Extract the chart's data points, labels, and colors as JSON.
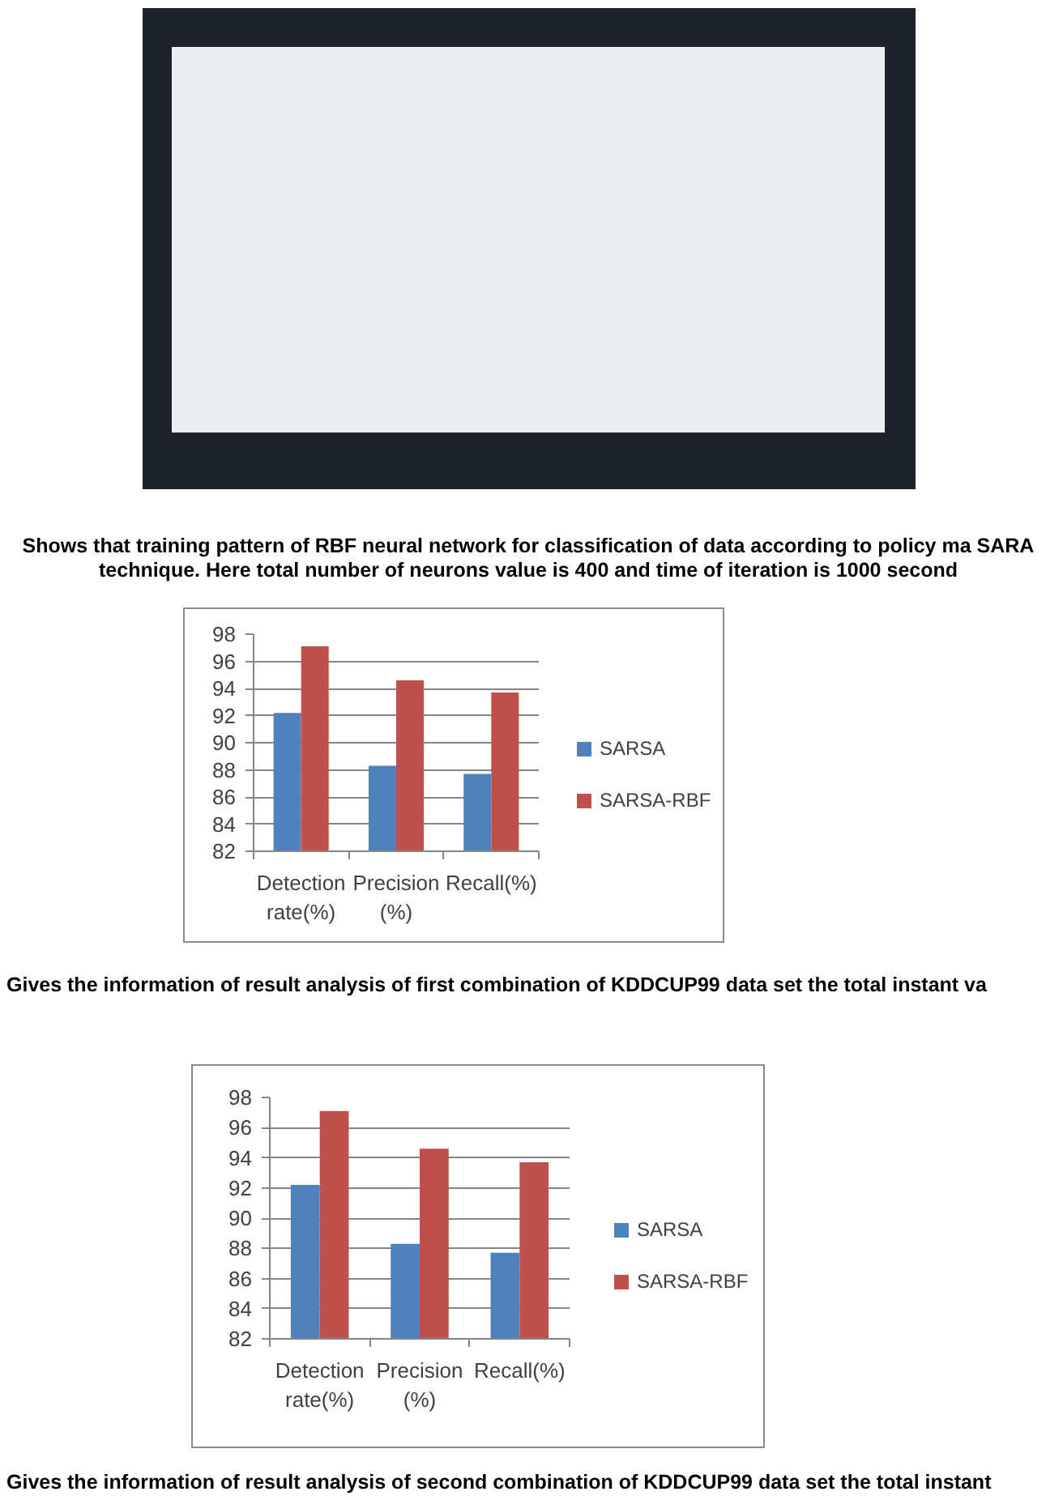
{
  "chart_data": [
    {
      "type": "other",
      "annotations": [
        "Shows that training pattern of RBF neural network for classification of data according to policy ma SARA technique. Here total number of neurons value is 400 and time of iteration is 1000 second"
      ]
    },
    {
      "type": "bar",
      "categories": [
        "Detection rate(%)",
        "Precision (%)",
        "Recall(%)"
      ],
      "series": [
        {
          "name": "SARSA",
          "color": "#4f81bd",
          "values": [
            92.2,
            88.3,
            87.7
          ]
        },
        {
          "name": "SARSA-RBF",
          "color": "#c0504d",
          "values": [
            97.1,
            94.6,
            93.7
          ]
        }
      ],
      "ylim": [
        82,
        98
      ],
      "yticks": [
        82,
        84,
        86,
        88,
        90,
        92,
        94,
        96,
        98
      ],
      "grid": "y",
      "legend": "right",
      "annotations": [
        "Gives the information of result analysis of first combination of KDDCUP99 data set the total instant va"
      ]
    },
    {
      "type": "bar",
      "categories": [
        "Detection rate(%)",
        "Precision (%)",
        "Recall(%)"
      ],
      "series": [
        {
          "name": "SARSA",
          "color": "#4f81bd",
          "values": [
            92.2,
            88.3,
            87.7
          ]
        },
        {
          "name": "SARSA-RBF",
          "color": "#c0504d",
          "values": [
            97.1,
            94.6,
            93.7
          ]
        }
      ],
      "ylim": [
        82,
        98
      ],
      "yticks": [
        82,
        84,
        86,
        88,
        90,
        92,
        94,
        96,
        98
      ],
      "grid": "y",
      "legend": "right",
      "annotations": [
        "Gives the information of result analysis of second combination of KDDCUP99 data set the total instant"
      ]
    }
  ]
}
